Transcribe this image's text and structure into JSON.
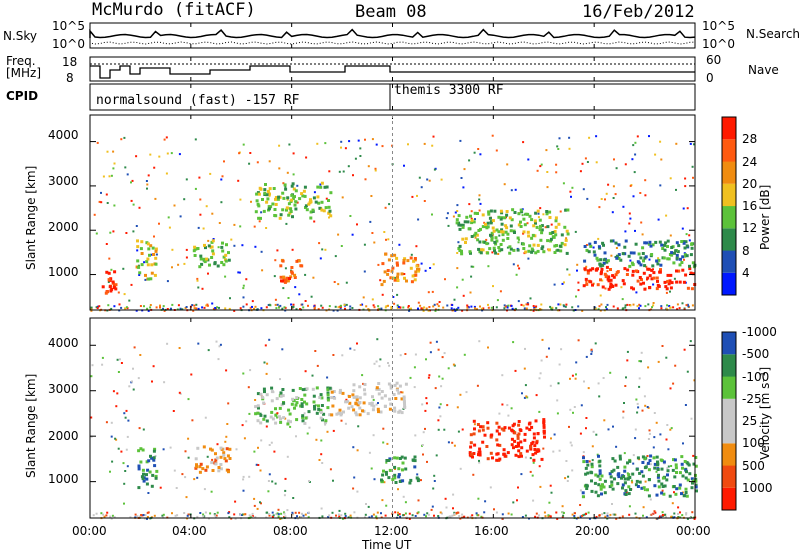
{
  "header": {
    "station": "McMurdo (fitACF)",
    "beam": "Beam 08",
    "date": "16/Feb/2012"
  },
  "noise_panel": {
    "left_label": "N.Sky",
    "right_label": "N.Search",
    "ytick_top": "10^5",
    "ytick_bottom": "10^0"
  },
  "freq_panel": {
    "left_label_1": "Freq.",
    "left_label_2": "[MHz]",
    "right_label": "Nave",
    "left_ticks": [
      "18",
      "8"
    ],
    "right_ticks": [
      "60",
      "0"
    ]
  },
  "cpid_panel": {
    "label": "CPID",
    "mode_1": "normalsound (fast) -157 RF",
    "mode_2": "themis 3300 RF"
  },
  "colors": {
    "power": [
      "#0018ff",
      "#1f4fb5",
      "#2e8a4a",
      "#5cc23a",
      "#f0c020",
      "#f08c10",
      "#ff5a10",
      "#ff1a00"
    ],
    "velocity": [
      "#ff1a00",
      "#f04a10",
      "#f08c10",
      "#c8c8c8",
      "#c8c8c8",
      "#5cc23a",
      "#2e8a4a",
      "#1f4fb5"
    ]
  },
  "chart_data": [
    {
      "type": "heatmap",
      "title": "",
      "xlabel": "",
      "ylabel": "Slant Range [km]",
      "xlim": [
        0,
        24
      ],
      "ylim": [
        200,
        4600
      ],
      "yticks": [
        "1000",
        "2000",
        "3000",
        "4000"
      ],
      "colorbar": {
        "label": "Power [dB]",
        "ticks": [
          "4",
          "8",
          "12",
          "16",
          "20",
          "24",
          "28"
        ]
      },
      "regions": [
        {
          "t": [
            0.4,
            1.0
          ],
          "r": [
            600,
            1100
          ],
          "level": 7
        },
        {
          "t": [
            1.8,
            2.6
          ],
          "r": [
            900,
            1800
          ],
          "level": 4
        },
        {
          "t": [
            4.0,
            5.5
          ],
          "r": [
            1200,
            1800
          ],
          "level": 3
        },
        {
          "t": [
            6.5,
            9.5
          ],
          "r": [
            2300,
            3100
          ],
          "level": 3
        },
        {
          "t": [
            7.5,
            8.5
          ],
          "r": [
            800,
            1400
          ],
          "level": 6
        },
        {
          "t": [
            11.5,
            13.0
          ],
          "r": [
            800,
            1500
          ],
          "level": 5
        },
        {
          "t": [
            14.5,
            19.0
          ],
          "r": [
            1500,
            2500
          ],
          "level": 3
        },
        {
          "t": [
            19.5,
            24.0
          ],
          "r": [
            700,
            1200
          ],
          "level": 7
        },
        {
          "t": [
            19.5,
            24.0
          ],
          "r": [
            1200,
            1800
          ],
          "level": 2
        }
      ]
    },
    {
      "type": "heatmap",
      "title": "",
      "xlabel": "Time UT",
      "ylabel": "Slant Range [km]",
      "xlim": [
        0,
        24
      ],
      "ylim": [
        200,
        4600
      ],
      "xticks": [
        "00:00",
        "04:00",
        "08:00",
        "12:00",
        "16:00",
        "20:00",
        "00:00"
      ],
      "yticks": [
        "1000",
        "2000",
        "3000",
        "4000"
      ],
      "colorbar": {
        "label": "Velocity [m s⁻¹]",
        "ticks": [
          "1000",
          "500",
          "100",
          "25",
          "-25",
          "-100",
          "-500",
          "-1000"
        ]
      },
      "regions": [
        {
          "t": [
            1.8,
            2.6
          ],
          "r": [
            900,
            1800
          ],
          "level": 6
        },
        {
          "t": [
            4.0,
            5.5
          ],
          "r": [
            1200,
            1800
          ],
          "level": 2
        },
        {
          "t": [
            6.5,
            9.5
          ],
          "r": [
            2300,
            3100
          ],
          "level": 5
        },
        {
          "t": [
            9.5,
            12.5
          ],
          "r": [
            2500,
            3200
          ],
          "level": 3
        },
        {
          "t": [
            11.5,
            13.0
          ],
          "r": [
            1000,
            1600
          ],
          "level": 6
        },
        {
          "t": [
            15.0,
            18.0
          ],
          "r": [
            1500,
            2400
          ],
          "level": 0
        },
        {
          "t": [
            19.5,
            24.0
          ],
          "r": [
            700,
            1600
          ],
          "level": 6
        }
      ]
    }
  ]
}
